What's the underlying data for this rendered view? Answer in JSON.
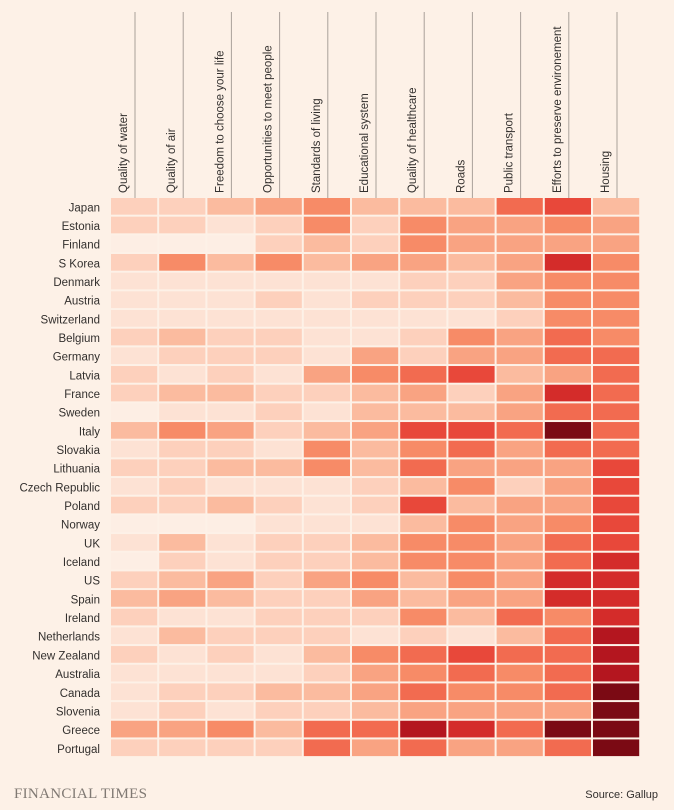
{
  "chart_data": {
    "type": "heatmap",
    "columns": [
      "Quality of water",
      "Quality of air",
      "Freedom to choose your life",
      "Opportunities to meet people",
      "Standards of living",
      "Educational system",
      "Quality of healthcare",
      "Roads",
      "Public transport",
      "Efforts to preserve environement",
      "Housing"
    ],
    "rows": [
      "Japan",
      "Estonia",
      "Finland",
      "S Korea",
      "Denmark",
      "Austria",
      "Switzerland",
      "Belgium",
      "Germany",
      "Latvia",
      "France",
      "Sweden",
      "Italy",
      "Slovakia",
      "Lithuania",
      "Czech Republic",
      "Poland",
      "Norway",
      "UK",
      "Iceland",
      "US",
      "Spain",
      "Ireland",
      "Netherlands",
      "New Zealand",
      "Australia",
      "Canada",
      "Slovenia",
      "Greece",
      "Portugal"
    ],
    "scale": "dissatisfaction level 0 (lightest) to 10 (darkest)",
    "values": [
      [
        2,
        2,
        3,
        4,
        5,
        3,
        3,
        3,
        6,
        7,
        3
      ],
      [
        2,
        2,
        1,
        2,
        5,
        2,
        5,
        4,
        4,
        5,
        4
      ],
      [
        0,
        0,
        0,
        2,
        3,
        2,
        5,
        4,
        4,
        4,
        4
      ],
      [
        2,
        5,
        3,
        5,
        3,
        4,
        4,
        3,
        4,
        8,
        5
      ],
      [
        1,
        1,
        1,
        1,
        1,
        1,
        2,
        2,
        4,
        5,
        5
      ],
      [
        1,
        1,
        1,
        2,
        1,
        2,
        2,
        2,
        3,
        5,
        5
      ],
      [
        1,
        1,
        1,
        1,
        1,
        1,
        1,
        1,
        2,
        5,
        5
      ],
      [
        2,
        3,
        2,
        2,
        1,
        1,
        2,
        5,
        4,
        6,
        5
      ],
      [
        1,
        2,
        2,
        2,
        1,
        4,
        2,
        4,
        4,
        6,
        6
      ],
      [
        2,
        1,
        2,
        1,
        4,
        5,
        6,
        7,
        3,
        4,
        6
      ],
      [
        2,
        3,
        3,
        2,
        2,
        3,
        4,
        2,
        4,
        8,
        6
      ],
      [
        0,
        1,
        1,
        2,
        1,
        3,
        3,
        3,
        4,
        6,
        6
      ],
      [
        3,
        5,
        4,
        2,
        3,
        4,
        7,
        7,
        6,
        10,
        6
      ],
      [
        1,
        2,
        2,
        1,
        5,
        3,
        5,
        6,
        4,
        6,
        6
      ],
      [
        2,
        2,
        3,
        3,
        5,
        3,
        6,
        4,
        4,
        4,
        7
      ],
      [
        1,
        2,
        1,
        1,
        1,
        2,
        3,
        5,
        2,
        4,
        7
      ],
      [
        2,
        2,
        3,
        2,
        1,
        2,
        7,
        3,
        4,
        4,
        7
      ],
      [
        0,
        0,
        0,
        1,
        1,
        1,
        3,
        5,
        4,
        5,
        7
      ],
      [
        1,
        3,
        1,
        2,
        2,
        3,
        5,
        5,
        4,
        6,
        7
      ],
      [
        0,
        2,
        1,
        2,
        2,
        3,
        5,
        5,
        4,
        6,
        8
      ],
      [
        2,
        3,
        4,
        2,
        4,
        5,
        3,
        5,
        4,
        8,
        8
      ],
      [
        3,
        4,
        3,
        2,
        2,
        4,
        3,
        4,
        4,
        8,
        8
      ],
      [
        2,
        1,
        1,
        2,
        2,
        2,
        5,
        3,
        6,
        5,
        8
      ],
      [
        1,
        3,
        2,
        2,
        2,
        1,
        2,
        1,
        3,
        6,
        9
      ],
      [
        2,
        1,
        2,
        1,
        3,
        5,
        6,
        7,
        6,
        6,
        9
      ],
      [
        1,
        1,
        1,
        1,
        2,
        4,
        5,
        6,
        5,
        6,
        9
      ],
      [
        1,
        2,
        2,
        3,
        3,
        4,
        6,
        5,
        5,
        6,
        10
      ],
      [
        1,
        2,
        1,
        2,
        2,
        3,
        4,
        4,
        4,
        4,
        10
      ],
      [
        4,
        4,
        5,
        3,
        6,
        6,
        9,
        8,
        6,
        10,
        10
      ],
      [
        2,
        2,
        2,
        2,
        6,
        4,
        6,
        4,
        4,
        6,
        10
      ]
    ],
    "palette": [
      "#fdeee4",
      "#fde2d4",
      "#fdd0bc",
      "#fbbb9f",
      "#f9a382",
      "#f78b67",
      "#f26b50",
      "#e8483a",
      "#d42c2a",
      "#b4161f",
      "#7b0a14"
    ]
  },
  "footer": {
    "logo": "FINANCIAL TIMES",
    "source": "Source: Gallup"
  }
}
